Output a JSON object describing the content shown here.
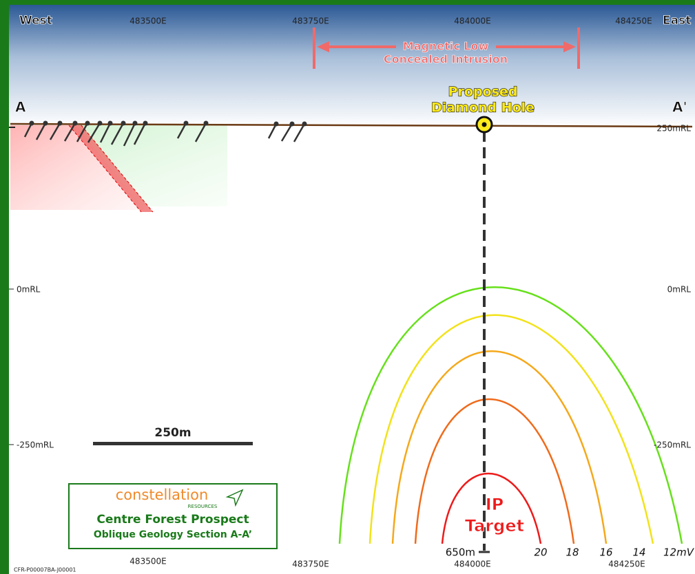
{
  "header": {
    "west": "West",
    "east": "East"
  },
  "eastings_top": [
    "483500E",
    "483750E",
    "484000E",
    "484250E"
  ],
  "eastings_bottom": [
    "483500E",
    "483750E",
    "484000E",
    "484250E"
  ],
  "magnetic_low": {
    "line1": "Magnetic Low",
    "line2": "Concealed Intrusion"
  },
  "section": {
    "start": "A",
    "end": "A'"
  },
  "proposed_hole": {
    "line1": "Proposed",
    "line2": "Diamond Hole"
  },
  "rl_left": [
    "0mRL",
    "-250mRL"
  ],
  "rl_right": [
    "250mRL",
    "0mRL",
    "-250mRL"
  ],
  "depth": "650m",
  "ip_target": {
    "line1": "IP",
    "line2": "Target"
  },
  "contours": [
    "20",
    "18",
    "16",
    "14",
    "12mV"
  ],
  "scale_bar": "250m",
  "logo": {
    "company": "constellation",
    "sub": "RESOURCES",
    "prospect": "Centre Forest Prospect",
    "section": "Oblique Geology Section A-A’"
  },
  "footer_code": "CFR-P00007BA-J00001"
}
